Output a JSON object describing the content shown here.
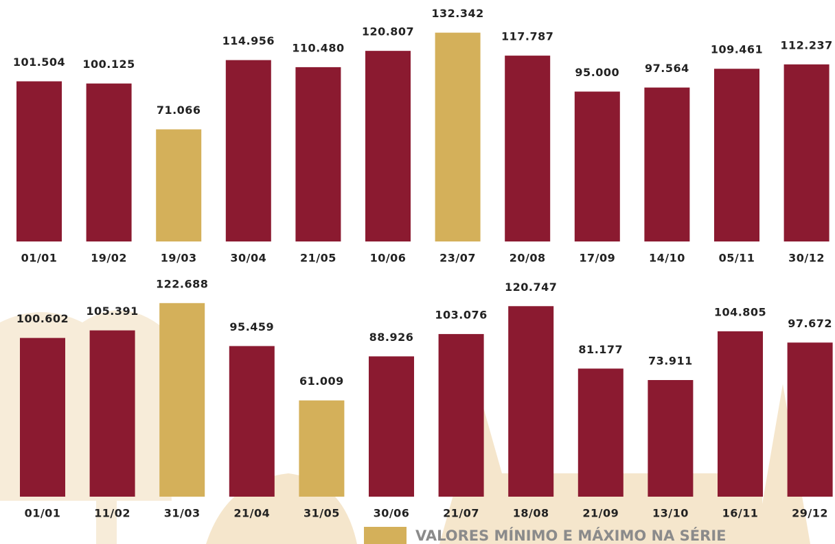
{
  "chart_data": [
    {
      "type": "bar",
      "categories": [
        "01/01",
        "19/02",
        "19/03",
        "30/04",
        "21/05",
        "10/06",
        "23/07",
        "20/08",
        "17/09",
        "14/10",
        "05/11",
        "30/12"
      ],
      "values": [
        101504,
        100125,
        71066,
        114956,
        110480,
        120807,
        132342,
        117787,
        95000,
        97564,
        109461,
        112237
      ],
      "value_labels": [
        "101.504",
        "100.125",
        "71.066",
        "114.956",
        "110.480",
        "120.807",
        "132.342",
        "117.787",
        "95.000",
        "97.564",
        "109.461",
        "112.237"
      ],
      "colors": [
        "#8b1a30",
        "#8b1a30",
        "#d4b05a",
        "#8b1a30",
        "#8b1a30",
        "#8b1a30",
        "#d4b05a",
        "#8b1a30",
        "#8b1a30",
        "#8b1a30",
        "#8b1a30",
        "#8b1a30"
      ]
    },
    {
      "type": "bar",
      "categories": [
        "01/01",
        "11/02",
        "31/03",
        "21/04",
        "31/05",
        "30/06",
        "21/07",
        "18/08",
        "21/09",
        "13/10",
        "16/11",
        "29/12"
      ],
      "values": [
        100602,
        105391,
        122688,
        95459,
        61009,
        88926,
        103076,
        120747,
        81177,
        73911,
        104805,
        97672
      ],
      "value_labels": [
        "100.602",
        "105.391",
        "122.688",
        "95.459",
        "61.009",
        "88.926",
        "103.076",
        "120.747",
        "81.177",
        "73.911",
        "104.805",
        "97.672"
      ],
      "colors": [
        "#8b1a30",
        "#8b1a30",
        "#d4b05a",
        "#8b1a30",
        "#d4b05a",
        "#8b1a30",
        "#8b1a30",
        "#8b1a30",
        "#8b1a30",
        "#8b1a30",
        "#8b1a30",
        "#8b1a30"
      ]
    }
  ],
  "legend": {
    "label": "VALORES MÍNIMO E MÁXIMO NA SÉRIE",
    "color": "#d4b05a"
  }
}
